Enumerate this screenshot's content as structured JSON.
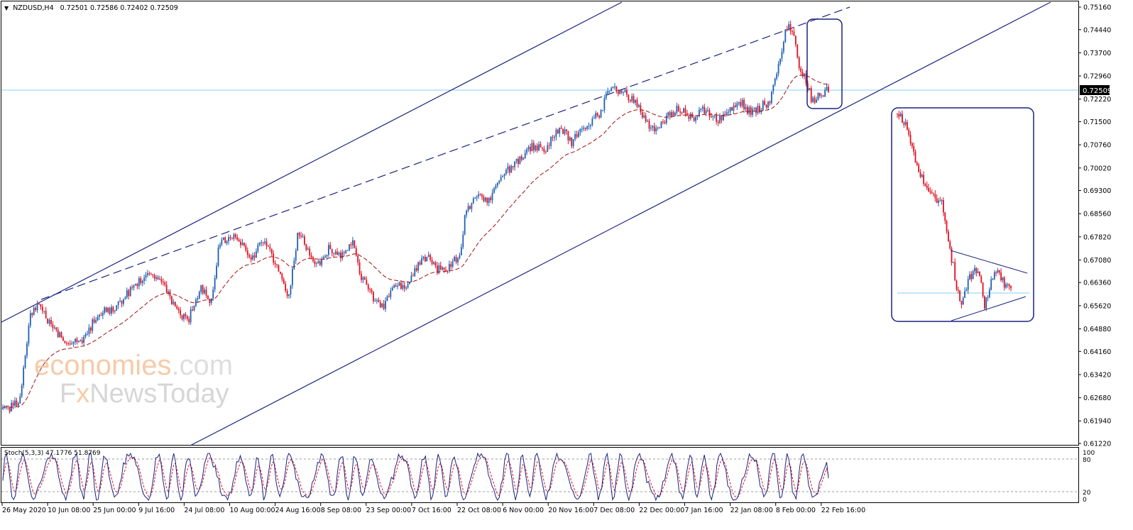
{
  "header": {
    "collapse_glyph": "▼",
    "symbol": "NZDUSD,H4",
    "ohlc": "0.72501 0.72586 0.72402 0.72509"
  },
  "watermark": {
    "line1_a": "economies",
    "line1_b": ".com",
    "line2_a": "F",
    "line2_b": "x",
    "line2_c": "NewsToday"
  },
  "indicator": {
    "label": "Stoch(5,3,3) 47.1776 51.8769",
    "levels": [
      "100",
      "80",
      "20",
      "0"
    ]
  },
  "colors": {
    "bull": "#1f5fb4",
    "bear": "#e01020",
    "channel": "#1a237e",
    "ma": "#a01010",
    "price_line": "#87cefa",
    "stoch_main": "#1a237e",
    "stoch_signal": "#e01020"
  },
  "chart_data": {
    "type": "candlestick",
    "symbol": "NZDUSD",
    "timeframe": "H4",
    "current_price": "0.72509",
    "price_ticks": [
      "0.75160",
      "0.74440",
      "0.73700",
      "0.72960",
      "0.72220",
      "0.71500",
      "0.70760",
      "0.70020",
      "0.69300",
      "0.68560",
      "0.67820",
      "0.67080",
      "0.66360",
      "0.65620",
      "0.64880",
      "0.64160",
      "0.63420",
      "0.62680",
      "0.61940",
      "0.61220"
    ],
    "time_ticks": [
      "26 May 2020",
      "10 Jun 08:00",
      "25 Jun 00:00",
      "9 Jul 16:00",
      "24 Jul 08:00",
      "10 Aug 00:00",
      "24 Aug 16:00",
      "8 Sep 08:00",
      "23 Sep 00:00",
      "7 Oct 16:00",
      "22 Oct 08:00",
      "6 Nov 00:00",
      "20 Nov 16:00",
      "7 Dec 08:00",
      "22 Dec 00:00",
      "7 Jan 16:00",
      "22 Jan 08:00",
      "8 Feb 00:00",
      "22 Feb 16:00"
    ],
    "price_path": [
      [
        0,
        0.623
      ],
      [
        0.02,
        0.625
      ],
      [
        0.033,
        0.653
      ],
      [
        0.045,
        0.658
      ],
      [
        0.055,
        0.651
      ],
      [
        0.065,
        0.647
      ],
      [
        0.08,
        0.644
      ],
      [
        0.1,
        0.646
      ],
      [
        0.115,
        0.654
      ],
      [
        0.135,
        0.6555
      ],
      [
        0.16,
        0.663
      ],
      [
        0.175,
        0.667
      ],
      [
        0.185,
        0.666
      ],
      [
        0.2,
        0.66
      ],
      [
        0.215,
        0.653
      ],
      [
        0.225,
        0.652
      ],
      [
        0.24,
        0.662
      ],
      [
        0.252,
        0.6575
      ],
      [
        0.262,
        0.676
      ],
      [
        0.28,
        0.679
      ],
      [
        0.29,
        0.6755
      ],
      [
        0.3,
        0.67
      ],
      [
        0.315,
        0.677
      ],
      [
        0.33,
        0.67
      ],
      [
        0.345,
        0.658
      ],
      [
        0.358,
        0.68
      ],
      [
        0.37,
        0.673
      ],
      [
        0.385,
        0.669
      ],
      [
        0.395,
        0.675
      ],
      [
        0.41,
        0.672
      ],
      [
        0.425,
        0.6765
      ],
      [
        0.432,
        0.666
      ],
      [
        0.445,
        0.66
      ],
      [
        0.46,
        0.656
      ],
      [
        0.475,
        0.662
      ],
      [
        0.49,
        0.663
      ],
      [
        0.505,
        0.67
      ],
      [
        0.515,
        0.672
      ],
      [
        0.525,
        0.668
      ],
      [
        0.54,
        0.668
      ],
      [
        0.555,
        0.673
      ],
      [
        0.56,
        0.686
      ],
      [
        0.575,
        0.691
      ],
      [
        0.59,
        0.69
      ],
      [
        0.605,
        0.698
      ],
      [
        0.615,
        0.7
      ],
      [
        0.625,
        0.703
      ],
      [
        0.64,
        0.707
      ],
      [
        0.655,
        0.706
      ],
      [
        0.665,
        0.709
      ],
      [
        0.675,
        0.714
      ],
      [
        0.688,
        0.708
      ],
      [
        0.7,
        0.712
      ],
      [
        0.712,
        0.715
      ],
      [
        0.725,
        0.7185
      ],
      [
        0.735,
        0.726
      ],
      [
        0.748,
        0.725
      ],
      [
        0.76,
        0.723
      ],
      [
        0.772,
        0.719
      ],
      [
        0.785,
        0.712
      ],
      [
        0.795,
        0.713
      ],
      [
        0.805,
        0.7175
      ],
      [
        0.82,
        0.719
      ],
      [
        0.835,
        0.716
      ],
      [
        0.85,
        0.719
      ],
      [
        0.865,
        0.715
      ],
      [
        0.88,
        0.719
      ],
      [
        0.895,
        0.721
      ],
      [
        0.905,
        0.718
      ],
      [
        0.915,
        0.719
      ],
      [
        0.93,
        0.722
      ],
      [
        0.938,
        0.732
      ],
      [
        0.943,
        0.738
      ],
      [
        0.948,
        0.744
      ],
      [
        0.953,
        0.746
      ],
      [
        0.958,
        0.742
      ],
      [
        0.963,
        0.734
      ],
      [
        0.97,
        0.73
      ],
      [
        0.98,
        0.722
      ],
      [
        1.0,
        0.72509
      ]
    ],
    "moving_average": "dashed",
    "trend_lines": [
      {
        "name": "lower channel",
        "style": "solid"
      },
      {
        "name": "upper channel",
        "style": "solid"
      },
      {
        "name": "resistance",
        "style": "dashed"
      }
    ],
    "highlight": "latest price action",
    "inset": "zoomed view of latest price action with converging triangle",
    "stochastic": {
      "name": "Stoch(5,3,3)",
      "main": 47.1776,
      "signal": 51.8769,
      "levels": [
        100,
        80,
        20,
        0
      ]
    }
  }
}
